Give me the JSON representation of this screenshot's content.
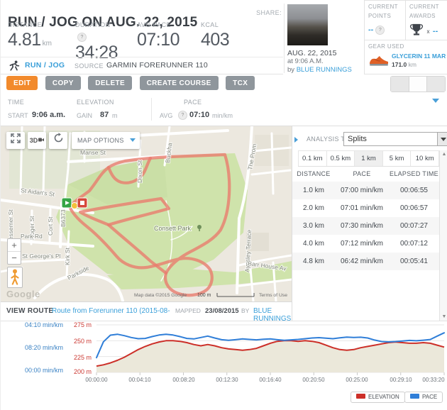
{
  "header": {
    "title": "RUN / JOG ON AUG. 22, 2015",
    "share_label": "SHARE:",
    "stats": [
      {
        "label": "DISTANCE",
        "value": "4.81",
        "unit": "km"
      },
      {
        "label": "DURATION",
        "value": "34:28",
        "unit": ""
      },
      {
        "label": "AVG PACE",
        "value": "07:10",
        "unit": ""
      },
      {
        "label": "KCAL",
        "value": "403",
        "unit": ""
      }
    ],
    "photo_meta": {
      "date": "AUG. 22, 2015",
      "time": "at 9:06 A.M.",
      "by_label": "by",
      "user": "BLUE RUNNINGS"
    },
    "points": {
      "line1": "CURRENT",
      "line2": "POINTS",
      "value": "--"
    },
    "awards": {
      "line1": "CURRENT",
      "line2": "AWARDS",
      "times": "x",
      "value": "--"
    },
    "gear": {
      "label": "GEAR USED",
      "name": "GLYCERIN 11 MAR...",
      "distance": "171.0",
      "unit": "km"
    }
  },
  "sport": {
    "name": "RUN / JOG",
    "source_label": "SOURCE",
    "device": "GARMIN FORERUNNER 110"
  },
  "toolbar": {
    "buttons": [
      "EDIT",
      "COPY",
      "DELETE",
      "CREATE COURSE",
      "TCX"
    ]
  },
  "summary": {
    "time_label": "TIME",
    "start_label": "START",
    "start_value": "9:06 a.m.",
    "elevation_label": "ELEVATION",
    "gain_label": "GAIN",
    "gain_value": "87",
    "gain_unit": "m",
    "pace_label": "PACE",
    "avg_label": "AVG",
    "avg_value": "07:10",
    "avg_unit": "min/km"
  },
  "map": {
    "options_label": "MAP OPTIONS",
    "three_d": "3D",
    "zoom_in": "+",
    "zoom_out": "−",
    "labels": {
      "park_st": "Park St",
      "manse_st": "Manse St",
      "dixon_st": "Dixon St",
      "buckham": "Buckha",
      "promenade": "The Prom",
      "st_aidans": "St Aidan's St",
      "b6373": "B6373",
      "bessemer": "Bessemer St",
      "roger_st": "Roger St",
      "cort_st": "Cort St",
      "park_rd": "Park Rd",
      "st_georges": "St George's Pl",
      "kirk_st": "Kirk St",
      "parkside": "Parkside",
      "consett_park": "Consett Park",
      "aynsley": "Aynsley Terrace",
      "barr_house": "Barr House Av"
    },
    "logo": "Google",
    "attribution": "Map data ©2015 Google",
    "scale_label": "100 m",
    "terms": "Terms of Use"
  },
  "analysis": {
    "label": "ANALYSIS TYPE:",
    "selected": "Splits",
    "tabs": [
      "0.1 km",
      "0.5 km",
      "1 km",
      "5 km",
      "10 km"
    ],
    "active_tab": "1 km",
    "columns": [
      "DISTANCE",
      "PACE",
      "ELAPSED TIME"
    ],
    "rows": [
      [
        "1.0 km",
        "07:00 min/km",
        "00:06:55"
      ],
      [
        "2.0 km",
        "07:01 min/km",
        "00:06:57"
      ],
      [
        "3.0 km",
        "07:30 min/km",
        "00:07:27"
      ],
      [
        "4.0 km",
        "07:12 min/km",
        "00:07:12"
      ],
      [
        "4.8 km",
        "06:42 min/km",
        "00:05:41"
      ]
    ]
  },
  "route_bar": {
    "label": "VIEW ROUTE",
    "link": "Route from Forerunner 110 (2015-08-",
    "mapped_label": "MAPPED",
    "mapped_date": "23/08/2015",
    "by_label": "BY",
    "user": "BLUE RUNNINGS"
  },
  "chart_data": {
    "type": "line",
    "x_axis": {
      "ticks": [
        "00:00:00",
        "00:04:10",
        "00:08:20",
        "00:12:30",
        "00:16:40",
        "00:20:50",
        "00:25:00",
        "00:29:10",
        "00:33:20"
      ],
      "range_seconds": [
        0,
        2000
      ]
    },
    "pace_axis": {
      "ticks": [
        "04:10 min/km",
        "08:20 min/km",
        "00:00 min/km"
      ],
      "unit": "min/km",
      "color": "#3a82c4",
      "seconds_scale": [
        250,
        750
      ]
    },
    "elevation_axis": {
      "ticks": [
        "275 m",
        "250 m",
        "225 m",
        "200 m"
      ],
      "unit": "m",
      "color": "#cc3b35",
      "range_m": [
        200,
        275
      ],
      "gridlines_m": [
        275,
        250,
        225,
        200
      ]
    },
    "legend": {
      "position": "bottom-right",
      "items": [
        "ELEVATION",
        "PACE"
      ]
    },
    "series": [
      {
        "name": "ELEVATION",
        "axis": "elevation",
        "unit": "m",
        "color": "#cc2f28",
        "fill": "#ebe8da",
        "points": [
          [
            0,
            210
          ],
          [
            40,
            212
          ],
          [
            80,
            215
          ],
          [
            120,
            219
          ],
          [
            160,
            224
          ],
          [
            200,
            230
          ],
          [
            240,
            236
          ],
          [
            280,
            241
          ],
          [
            320,
            245
          ],
          [
            360,
            248
          ],
          [
            400,
            250
          ],
          [
            440,
            250
          ],
          [
            480,
            249
          ],
          [
            520,
            247
          ],
          [
            560,
            244
          ],
          [
            600,
            242
          ],
          [
            640,
            244
          ],
          [
            680,
            242
          ],
          [
            720,
            239
          ],
          [
            760,
            237
          ],
          [
            800,
            236
          ],
          [
            840,
            235
          ],
          [
            880,
            236
          ],
          [
            920,
            238
          ],
          [
            960,
            242
          ],
          [
            1000,
            246
          ],
          [
            1040,
            249
          ],
          [
            1080,
            250
          ],
          [
            1120,
            250
          ],
          [
            1160,
            249
          ],
          [
            1200,
            250
          ],
          [
            1240,
            249
          ],
          [
            1280,
            247
          ],
          [
            1320,
            243
          ],
          [
            1360,
            239
          ],
          [
            1400,
            236
          ],
          [
            1440,
            235
          ],
          [
            1480,
            236
          ],
          [
            1520,
            239
          ],
          [
            1560,
            241
          ],
          [
            1600,
            243
          ],
          [
            1640,
            245
          ],
          [
            1680,
            247
          ],
          [
            1720,
            248
          ],
          [
            1760,
            247
          ],
          [
            1800,
            246
          ],
          [
            1840,
            246
          ],
          [
            1880,
            247
          ],
          [
            1920,
            246
          ],
          [
            1960,
            243
          ],
          [
            2000,
            240
          ]
        ]
      },
      {
        "name": "PACE",
        "axis": "pace",
        "unit": "s/km",
        "color": "#2f7ed8",
        "points": [
          [
            0,
            600
          ],
          [
            40,
            430
          ],
          [
            80,
            360
          ],
          [
            120,
            350
          ],
          [
            160,
            365
          ],
          [
            200,
            385
          ],
          [
            240,
            398
          ],
          [
            280,
            395
          ],
          [
            320,
            375
          ],
          [
            360,
            358
          ],
          [
            400,
            350
          ],
          [
            440,
            358
          ],
          [
            480,
            375
          ],
          [
            520,
            395
          ],
          [
            560,
            400
          ],
          [
            600,
            385
          ],
          [
            640,
            370
          ],
          [
            680,
            390
          ],
          [
            720,
            408
          ],
          [
            760,
            415
          ],
          [
            800,
            408
          ],
          [
            840,
            400
          ],
          [
            880,
            405
          ],
          [
            920,
            410
          ],
          [
            960,
            404
          ],
          [
            1000,
            400
          ],
          [
            1040,
            408
          ],
          [
            1080,
            415
          ],
          [
            1120,
            410
          ],
          [
            1160,
            405
          ],
          [
            1200,
            398
          ],
          [
            1240,
            390
          ],
          [
            1280,
            386
          ],
          [
            1320,
            392
          ],
          [
            1360,
            398
          ],
          [
            1400,
            388
          ],
          [
            1440,
            380
          ],
          [
            1480,
            384
          ],
          [
            1520,
            382
          ],
          [
            1560,
            390
          ],
          [
            1600,
            412
          ],
          [
            1640,
            428
          ],
          [
            1680,
            432
          ],
          [
            1720,
            428
          ],
          [
            1760,
            422
          ],
          [
            1800,
            416
          ],
          [
            1840,
            420
          ],
          [
            1880,
            414
          ],
          [
            1920,
            406
          ],
          [
            1960,
            370
          ],
          [
            2000,
            335
          ]
        ]
      }
    ]
  }
}
